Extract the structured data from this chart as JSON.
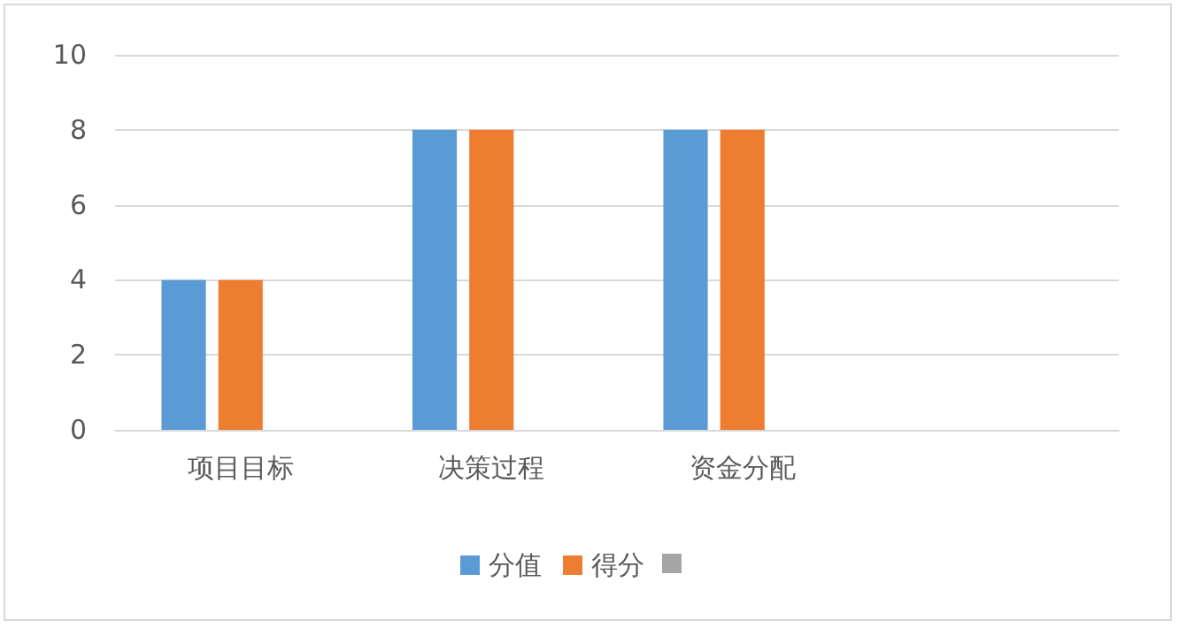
{
  "chart_data": {
    "type": "bar",
    "categories": [
      "项目目标",
      "决策过程",
      "资金分配",
      null
    ],
    "series": [
      {
        "name": "分值",
        "color": "#5b9bd5",
        "values": [
          4,
          8,
          8,
          null
        ]
      },
      {
        "name": "得分",
        "color": "#ed7d31",
        "values": [
          4,
          8,
          8,
          null
        ]
      },
      {
        "color": "#a5a5a5",
        "values": [
          null,
          null,
          null,
          null
        ]
      }
    ],
    "ylim": [
      0,
      10
    ],
    "yticks": [
      0,
      2,
      4,
      6,
      8,
      10
    ],
    "grid": "y",
    "legend": "bottom"
  }
}
